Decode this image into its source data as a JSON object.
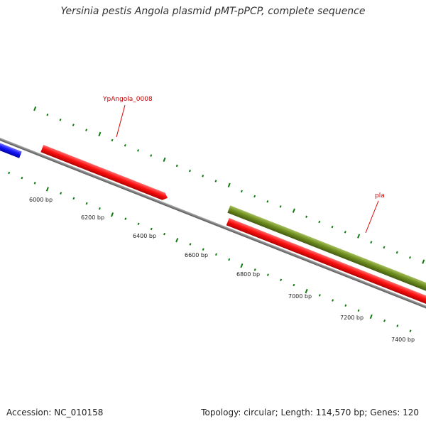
{
  "title": "Yersinia pestis Angola plasmid pMT-pPCP, complete sequence",
  "footer": {
    "accession_label": "Accession:",
    "accession": "NC_010158",
    "topology_label": "Topology:",
    "topology": "circular;",
    "length_label": "Length:",
    "length": "114,570 bp;",
    "genes_label": "Genes:",
    "genes": "120"
  },
  "tick_labels": [
    "6000 bp",
    "6200 bp",
    "6400 bp",
    "6600 bp",
    "6800 bp",
    "7000 bp",
    "7200 bp",
    "7400 bp"
  ],
  "gene_labels": {
    "ypangola": "YpAngola_0008",
    "pla": "pla"
  },
  "colors": {
    "backbone": "#808080",
    "blue_gene": "#1515ff",
    "red_gene": "#ff1010",
    "olive_gene": "#6f8f1f",
    "tick": "#0f7a0f",
    "label_red": "#cc0000"
  }
}
